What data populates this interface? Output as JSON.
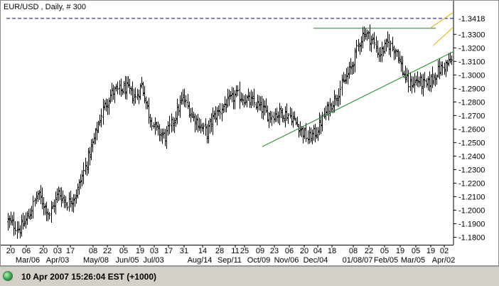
{
  "colors": {
    "background": "#ffffff",
    "bars": "#000000",
    "resistance_line": "#0000cc",
    "trend_line": "#1a8a1a",
    "channel_line": "#e0b000",
    "status_indicator": "#2fa84a"
  },
  "status_bar": {
    "icon": "green-status-dot-icon",
    "text": "10 Apr 2007 15:26:04  EST (+1000)"
  },
  "chart_data": {
    "type": "ohlc",
    "title": "EUR/USD , Daily, # 300",
    "ylim": [
      1.175,
      1.3475
    ],
    "yticks": [
      "1.1800",
      "1.1900",
      "1.2000",
      "1.2100",
      "1.2200",
      "1.2300",
      "1.2400",
      "1.2500",
      "1.2600",
      "1.2700",
      "1.2800",
      "1.2900",
      "1.3000",
      "1.3100",
      "1.3200",
      "1.3300"
    ],
    "current_price_label": "1.3418",
    "x_axis_top_labels": [
      "20",
      "06",
      "20",
      "03",
      "17",
      "08",
      "22",
      "05",
      "19",
      "03",
      "17",
      "31",
      "14",
      "28",
      "11",
      "25",
      "09",
      "23",
      "06",
      "20",
      "04",
      "18",
      "08",
      "22",
      "05",
      "19",
      "05",
      "19",
      "02"
    ],
    "x_axis_bottom_labels": [
      "Mar/06",
      "Apr/03",
      "May/08",
      "Jun/05",
      "Jul/03",
      "Aug/14",
      "Sep/11",
      "Oct/09",
      "Nov/06",
      "Dec/04",
      "01/08/07",
      "Feb/05",
      "Mar/05",
      "Apr/02"
    ],
    "bar_count": 300,
    "price_path_keypoints": [
      [
        0,
        1.192
      ],
      [
        8,
        1.186
      ],
      [
        14,
        1.196
      ],
      [
        20,
        1.212
      ],
      [
        28,
        1.197
      ],
      [
        34,
        1.213
      ],
      [
        40,
        1.205
      ],
      [
        46,
        1.212
      ],
      [
        52,
        1.232
      ],
      [
        58,
        1.252
      ],
      [
        64,
        1.275
      ],
      [
        70,
        1.287
      ],
      [
        80,
        1.29
      ],
      [
        86,
        1.283
      ],
      [
        90,
        1.293
      ],
      [
        95,
        1.271
      ],
      [
        100,
        1.259
      ],
      [
        106,
        1.254
      ],
      [
        112,
        1.268
      ],
      [
        118,
        1.283
      ],
      [
        124,
        1.27
      ],
      [
        130,
        1.262
      ],
      [
        134,
        1.257
      ],
      [
        138,
        1.268
      ],
      [
        146,
        1.278
      ],
      [
        154,
        1.285
      ],
      [
        160,
        1.282
      ],
      [
        168,
        1.278
      ],
      [
        176,
        1.27
      ],
      [
        184,
        1.272
      ],
      [
        190,
        1.27
      ],
      [
        196,
        1.262
      ],
      [
        202,
        1.253
      ],
      [
        208,
        1.258
      ],
      [
        214,
        1.272
      ],
      [
        220,
        1.282
      ],
      [
        226,
        1.294
      ],
      [
        232,
        1.307
      ],
      [
        236,
        1.322
      ],
      [
        240,
        1.332
      ],
      [
        246,
        1.325
      ],
      [
        250,
        1.315
      ],
      [
        256,
        1.323
      ],
      [
        262,
        1.318
      ],
      [
        266,
        1.303
      ],
      [
        270,
        1.293
      ],
      [
        276,
        1.296
      ],
      [
        282,
        1.292
      ],
      [
        290,
        1.303
      ],
      [
        298,
        1.31
      ]
    ],
    "annotations": [
      {
        "type": "horizontal-line",
        "style": "dashed",
        "color": "blue",
        "y": 1.3418
      },
      {
        "type": "horizontal-line",
        "style": "solid",
        "color": "green",
        "y": 1.3345,
        "x_from_label": "Dec/04"
      },
      {
        "type": "trend-line",
        "color": "green",
        "from": [
          "Oct/09",
          1.247
        ],
        "to": [
          "Apr/02",
          1.317
        ]
      },
      {
        "type": "channel-lines",
        "color": "yellow",
        "note": "rising wedge near current price"
      }
    ]
  }
}
